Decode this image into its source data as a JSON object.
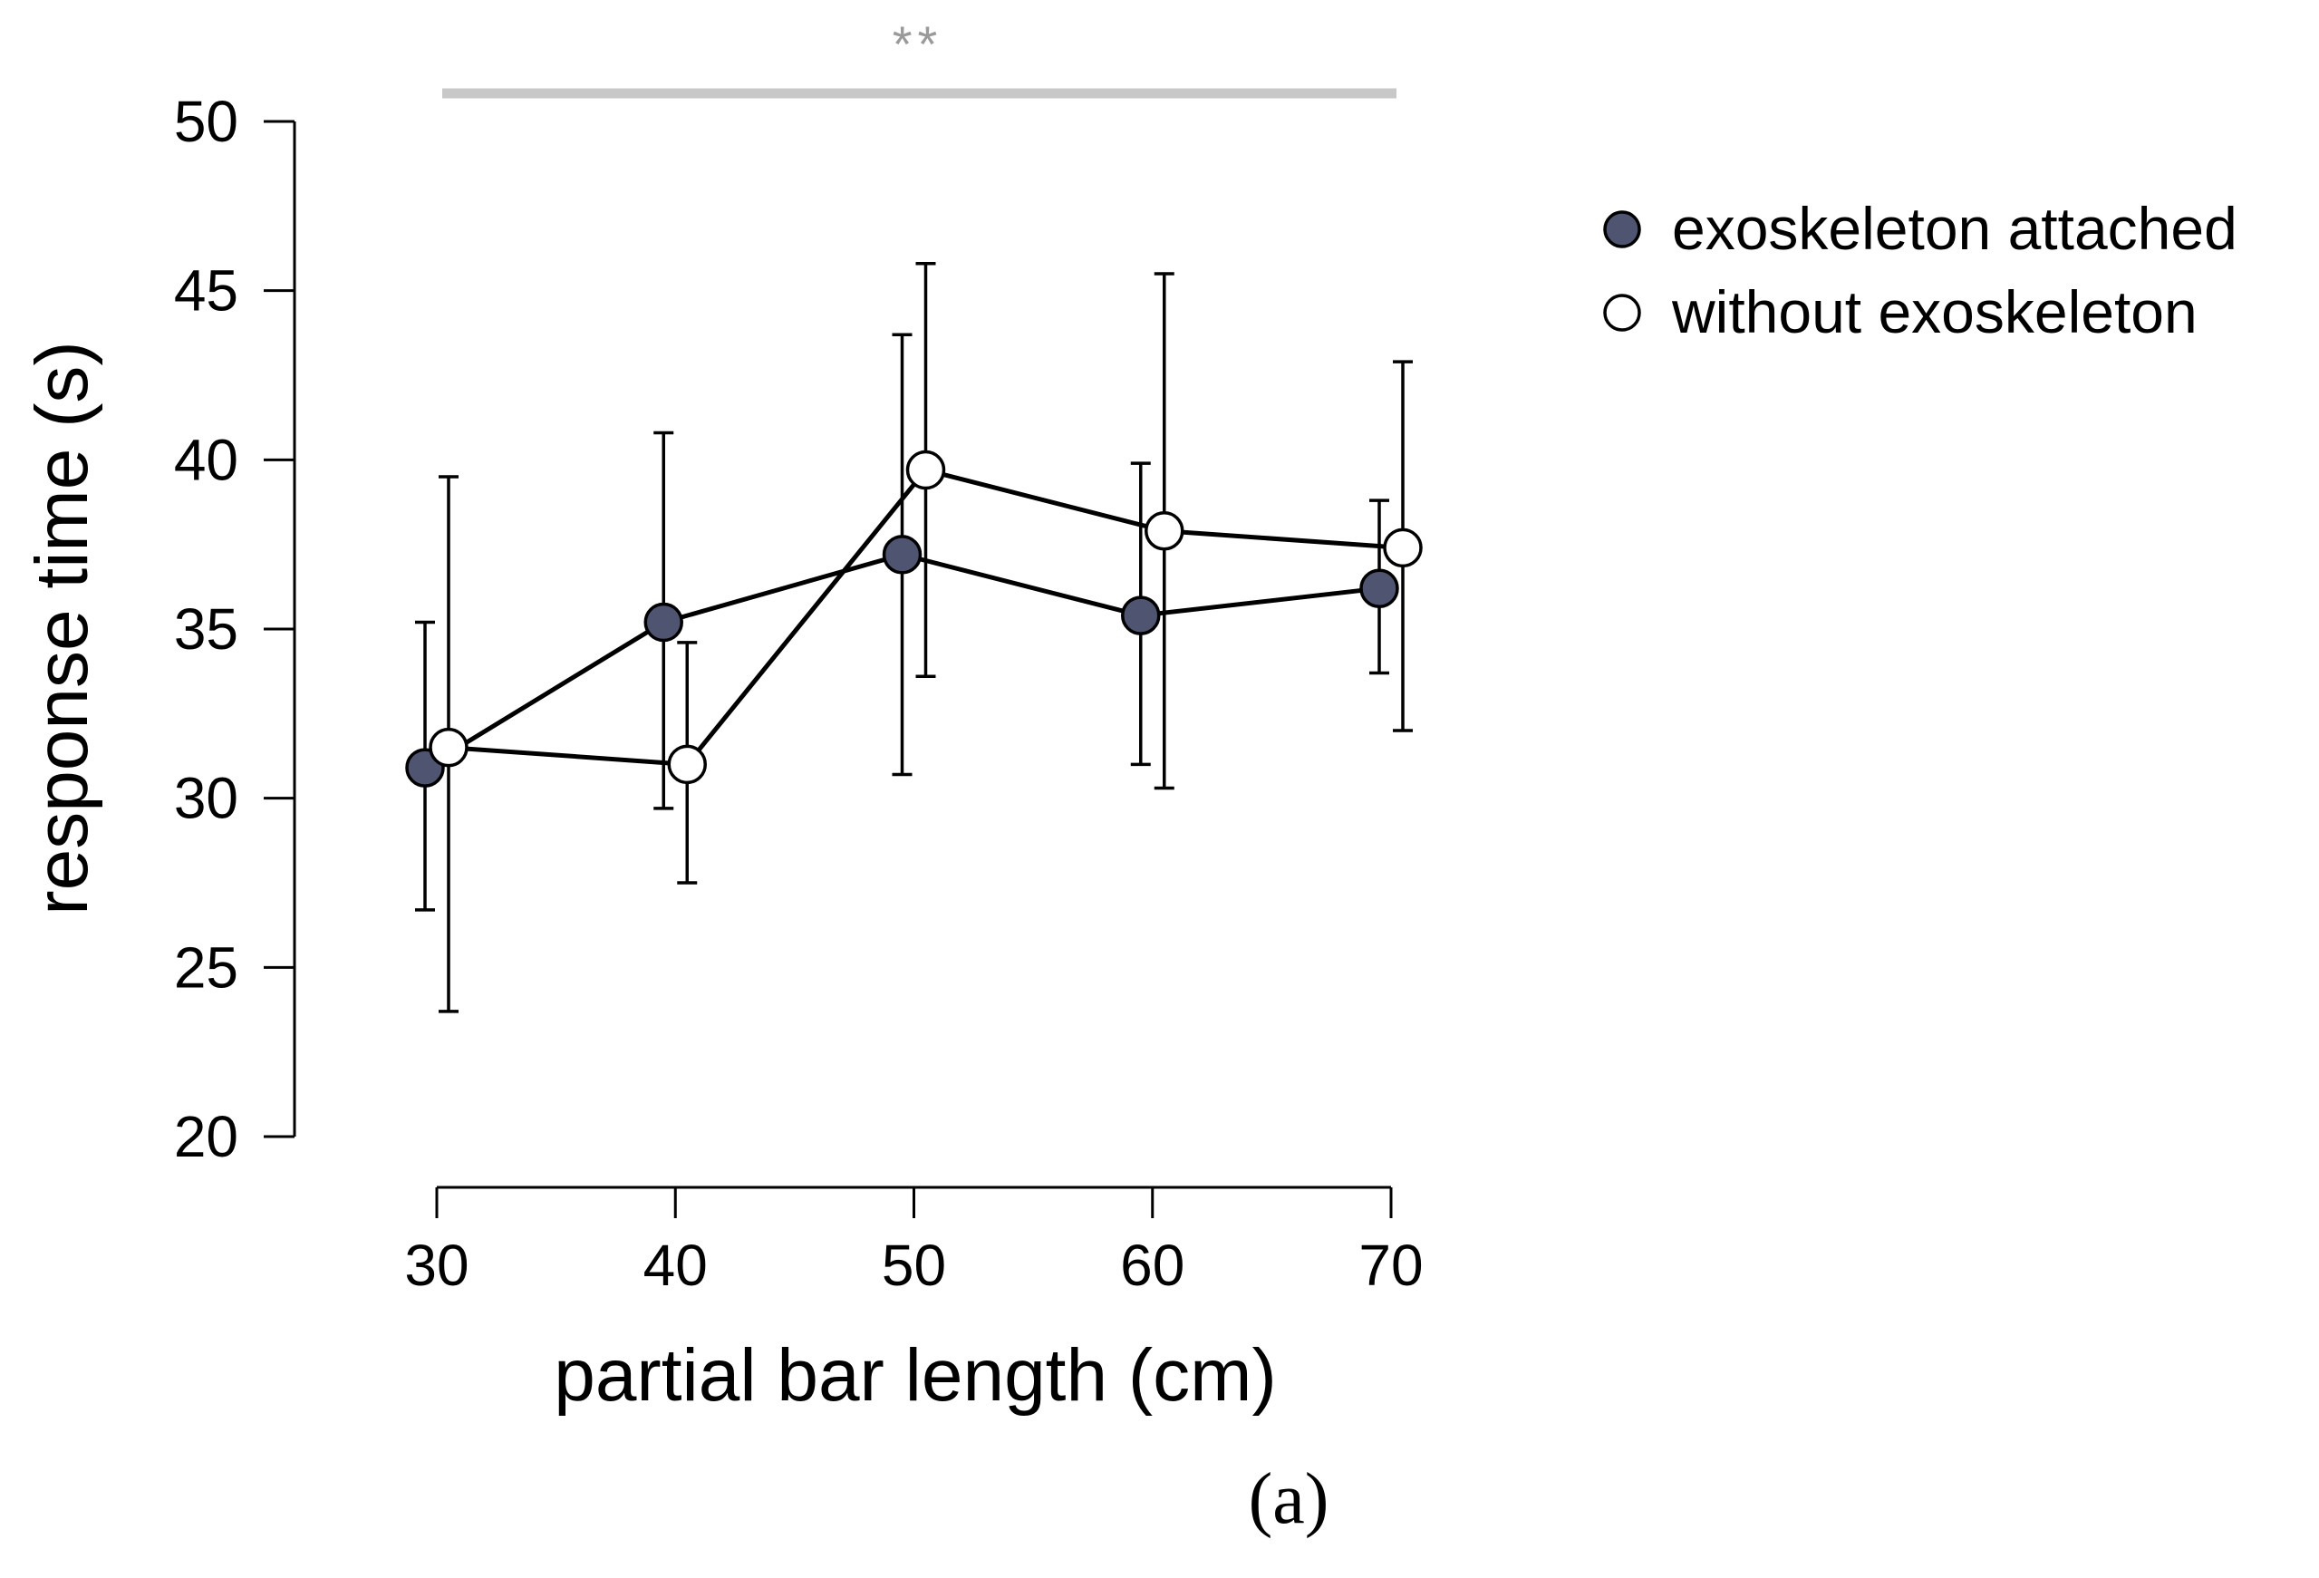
{
  "chart_data": {
    "type": "line",
    "title": "",
    "xlabel": "partial bar length (cm)",
    "ylabel": "response time (s)",
    "x": [
      30,
      40,
      50,
      60,
      70
    ],
    "x_ticks": [
      "30",
      "40",
      "50",
      "60",
      "70"
    ],
    "y_ticks": [
      "20",
      "25",
      "30",
      "35",
      "40",
      "45",
      "50"
    ],
    "xlim": [
      30,
      70
    ],
    "ylim": [
      20,
      50
    ],
    "grid": false,
    "legend_position": "top-right",
    "series": [
      {
        "name": "exoskeleton attached",
        "color": "#4f5470",
        "values": [
          30.9,
          35.2,
          37.2,
          35.4,
          36.2
        ],
        "error_low": [
          26.7,
          29.7,
          30.7,
          31.0,
          33.7
        ],
        "error_high": [
          35.2,
          40.8,
          43.7,
          39.9,
          38.8
        ]
      },
      {
        "name": "without exoskeleton",
        "color": "#ffffff",
        "values": [
          31.5,
          31.0,
          39.7,
          37.9,
          37.4
        ],
        "error_low": [
          23.7,
          27.5,
          33.6,
          30.3,
          32.0
        ],
        "error_high": [
          39.5,
          34.6,
          45.8,
          45.5,
          42.9
        ]
      }
    ],
    "annotations": {
      "significance": "**",
      "significance_color": "#c8c8c8",
      "significance_range": [
        30,
        70
      ]
    },
    "panel_label": "(a)"
  }
}
